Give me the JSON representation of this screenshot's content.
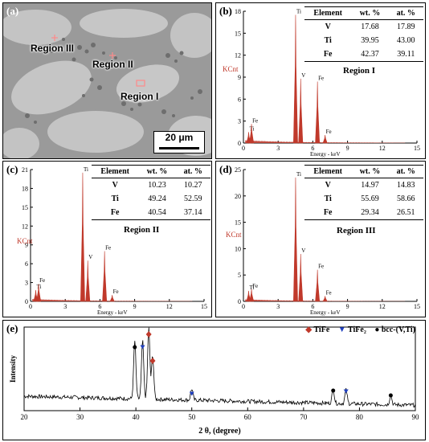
{
  "panels": {
    "a": {
      "label": "(a)",
      "regions": [
        "Region III",
        "Region II",
        "Region I"
      ],
      "scale": "20 μm"
    },
    "b": {
      "label": "(b)",
      "ylabel": "KCnt",
      "xlabel": "Energy - keV",
      "region_title": "Region I"
    },
    "c": {
      "label": "(c)",
      "ylabel": "KCnt",
      "xlabel": "Energy - keV",
      "region_title": "Region II"
    },
    "d": {
      "label": "(d)",
      "ylabel": "KCnt",
      "xlabel": "Energy - keV",
      "region_title": "Region III"
    },
    "e": {
      "label": "(e)",
      "ylabel": "Intensity",
      "xlabel": "2 θ, (degree)",
      "legend": [
        "TiFe",
        "TiFe₂",
        "bcc-(V,Ti)"
      ]
    }
  },
  "table_headers": [
    "Element",
    "wt. %",
    "at. %"
  ],
  "colors": {
    "spectrum": "#c0392b",
    "tiFe": "#c0392b",
    "tiFe2": "#1f3fbf",
    "bcc": "#000000",
    "sem_bg": "#9c9c9c",
    "sem_grain": "#c8c8c8"
  },
  "chart_data": [
    {
      "type": "table",
      "title": "Region I",
      "columns": [
        "Element",
        "wt. %",
        "at. %"
      ],
      "rows": [
        [
          "V",
          "17.68",
          "17.89"
        ],
        [
          "Ti",
          "39.95",
          "43.00"
        ],
        [
          "Fe",
          "42.37",
          "39.11"
        ]
      ]
    },
    {
      "type": "table",
      "title": "Region II",
      "columns": [
        "Element",
        "wt. %",
        "at. %"
      ],
      "rows": [
        [
          "V",
          "10.23",
          "10.27"
        ],
        [
          "Ti",
          "49.24",
          "52.59"
        ],
        [
          "Fe",
          "40.54",
          "37.14"
        ]
      ]
    },
    {
      "type": "table",
      "title": "Region III",
      "columns": [
        "Element",
        "wt. %",
        "at. %"
      ],
      "rows": [
        [
          "V",
          "14.97",
          "14.83"
        ],
        [
          "Ti",
          "55.69",
          "58.66"
        ],
        [
          "Fe",
          "29.34",
          "26.51"
        ]
      ]
    },
    {
      "type": "bar",
      "title": "Region I",
      "xlabel": "Energy - keV",
      "ylabel": "KCnt",
      "xlim": [
        0,
        15
      ],
      "ylim": [
        0,
        18
      ],
      "xticks": [
        0,
        3,
        6,
        9,
        12,
        15
      ],
      "yticks": [
        0,
        3,
        6,
        9,
        12,
        15,
        18
      ],
      "peaks": [
        {
          "label": "Ti",
          "x": 0.45,
          "y": 1.5
        },
        {
          "label": "Fe",
          "x": 0.7,
          "y": 2.6
        },
        {
          "label": "Ti",
          "x": 4.51,
          "y": 17.5
        },
        {
          "label": "V",
          "x": 4.95,
          "y": 8.8
        },
        {
          "label": "Fe",
          "x": 6.4,
          "y": 8.4
        },
        {
          "label": "Fe",
          "x": 7.06,
          "y": 1.1
        }
      ]
    },
    {
      "type": "bar",
      "title": "Region II",
      "xlabel": "Energy - keV",
      "ylabel": "KCnt",
      "xlim": [
        0,
        15
      ],
      "ylim": [
        0,
        21
      ],
      "xticks": [
        0,
        3,
        6,
        9,
        12,
        15
      ],
      "yticks": [
        0,
        3,
        6,
        9,
        12,
        15,
        18,
        21
      ],
      "peaks": [
        {
          "label": "Ti",
          "x": 0.45,
          "y": 1.8
        },
        {
          "label": "Fe",
          "x": 0.7,
          "y": 2.8
        },
        {
          "label": "Ti",
          "x": 4.51,
          "y": 20.5
        },
        {
          "label": "V",
          "x": 4.95,
          "y": 6.5
        },
        {
          "label": "Fe",
          "x": 6.4,
          "y": 8.0
        },
        {
          "label": "Fe",
          "x": 7.06,
          "y": 1.0
        }
      ]
    },
    {
      "type": "bar",
      "title": "Region III",
      "xlabel": "Energy - keV",
      "ylabel": "KCnt",
      "xlim": [
        0,
        15
      ],
      "ylim": [
        0,
        25
      ],
      "xticks": [
        0,
        3,
        6,
        9,
        12,
        15
      ],
      "yticks": [
        0,
        5,
        10,
        15,
        20,
        25
      ],
      "peaks": [
        {
          "label": "Ti",
          "x": 0.45,
          "y": 2.0
        },
        {
          "label": "Fe",
          "x": 0.7,
          "y": 2.3
        },
        {
          "label": "Ti",
          "x": 4.51,
          "y": 23.5
        },
        {
          "label": "V",
          "x": 4.95,
          "y": 9.0
        },
        {
          "label": "Fe",
          "x": 6.4,
          "y": 6.0
        },
        {
          "label": "Fe",
          "x": 7.06,
          "y": 1.0
        }
      ]
    },
    {
      "type": "line",
      "xlabel": "2 θ, (degree)",
      "ylabel": "Intensity",
      "xlim": [
        20,
        90
      ],
      "xticks": [
        20,
        30,
        40,
        50,
        60,
        70,
        80,
        90
      ],
      "peaks": [
        {
          "x": 39.8,
          "h": 0.72,
          "phase": "bcc-(V,Ti)"
        },
        {
          "x": 41.2,
          "h": 0.72,
          "phase": "TiFe₂"
        },
        {
          "x": 42.3,
          "h": 0.88,
          "phase": "TiFe"
        },
        {
          "x": 43.0,
          "h": 0.55,
          "phase": "TiFe"
        },
        {
          "x": 50.0,
          "h": 0.14,
          "phase": "TiFe₂"
        },
        {
          "x": 75.3,
          "h": 0.18,
          "phase": "bcc-(V,Ti)"
        },
        {
          "x": 77.6,
          "h": 0.17,
          "phase": "TiFe₂"
        },
        {
          "x": 85.6,
          "h": 0.12,
          "phase": "bcc-(V,Ti)"
        }
      ]
    }
  ]
}
